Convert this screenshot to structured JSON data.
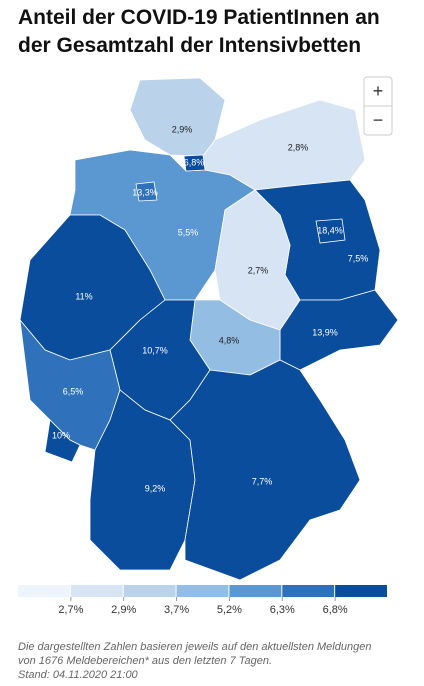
{
  "header": {
    "title": [
      "Anteil der COVID-19 PatientInnen an",
      "der Gesamtzahl der Intensivbetten"
    ]
  },
  "zoom": {
    "in": "+",
    "out": "−"
  },
  "regions": [
    {
      "label": "2,9%",
      "color": "#bad3ea"
    },
    {
      "label": "2,8%",
      "color": "#d6e4f3"
    },
    {
      "label": "5,5%",
      "color": "#5b97d1"
    },
    {
      "label": "7,5%",
      "color": "#0a4d9d"
    },
    {
      "label": "2,7%",
      "color": "#d6e4f3"
    },
    {
      "label": "13,9%",
      "color": "#0a4d9d"
    },
    {
      "label": "4,8%",
      "color": "#93bde2"
    },
    {
      "label": "11%",
      "color": "#0a4d9d"
    },
    {
      "label": "10,7%",
      "color": "#0a4d9d"
    },
    {
      "label": "6,5%",
      "color": "#2f72bb"
    },
    {
      "label": "9,2%",
      "color": "#0a4d9d"
    },
    {
      "label": "7,7%",
      "color": "#0a4d9d"
    },
    {
      "label": "10%",
      "color": "#0a4d9d"
    },
    {
      "label": "6,8%",
      "color": "#0a4d9d"
    },
    {
      "label": "13,3%",
      "color": "#2f72bb"
    },
    {
      "label": "18,4%",
      "color": "#0a4d9d"
    }
  ],
  "legend": {
    "colors": [
      "#eef4fb",
      "#d6e4f3",
      "#bad3ea",
      "#93bde2",
      "#5b97d1",
      "#2f72bb",
      "#0a4d9d"
    ],
    "labels": [
      "2,7%",
      "2,9%",
      "3,7%",
      "5,2%",
      "6,3%",
      "6,8%"
    ]
  },
  "footer": {
    "lines": [
      "Die dargestellten Zahlen basieren jeweils auf den aktuellsten Meldungen",
      "von 1676 Meldebereichen* aus den letzten 7 Tagen.",
      "Stand: 04.11.2020 21:00"
    ]
  }
}
